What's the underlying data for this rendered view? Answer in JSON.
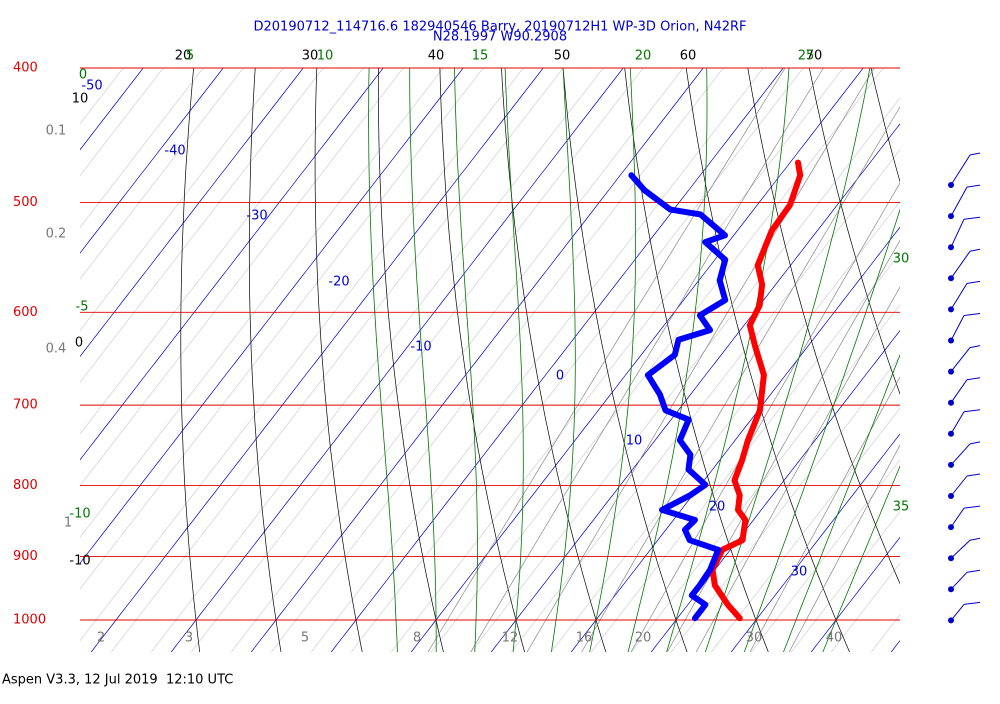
{
  "chart_data": {
    "type": "skewt",
    "title": "D20190712_114716.6 182940546 Barry, 20190712H1 WP-3D Orion, N42RF",
    "subtitle": "N28.1997 W90.2908",
    "footer": "Aspen V3.3, 12 Jul 2019  12:10 UTC",
    "ylim": [
      400,
      1000
    ],
    "yticks": [
      400,
      500,
      600,
      700,
      800,
      900,
      1000
    ],
    "log_scale": true,
    "isotherm_labels": [
      -50,
      -40,
      -30,
      -20,
      -10,
      0,
      10,
      20,
      30
    ],
    "dry_adiabat_labels": [
      20,
      30,
      40,
      50,
      60,
      70
    ],
    "moist_adiabat_top_labels": [
      5,
      10,
      15,
      20,
      25
    ],
    "moist_adiabat_right_labels": [
      30,
      35
    ],
    "moist_adiabat_left_labels": [
      0,
      -5,
      -10
    ],
    "left_black_labels": [
      10,
      0,
      -10
    ],
    "left_gray_labels": [
      0.1,
      0.2,
      0.4,
      1
    ],
    "mixing_ratio_labels": [
      2,
      3,
      5,
      8,
      12,
      16,
      20,
      30,
      40
    ],
    "series": [
      {
        "name": "Temperature",
        "color": "#ff0000",
        "pressure": [
          997,
          975,
          944,
          920,
          890,
          876,
          847,
          833,
          813,
          793,
          767,
          742,
          706,
          666,
          634,
          613,
          593,
          573,
          555,
          524,
          502,
          478,
          468
        ],
        "values": [
          27.8,
          25.0,
          21.5,
          19.7,
          19.0,
          20.6,
          19.0,
          17.1,
          15.9,
          13.8,
          12.8,
          11.6,
          10.2,
          7.3,
          3.3,
          0.7,
          0.0,
          -1.7,
          -4.1,
          -5.7,
          -5.9,
          -7.5,
          -9.0
        ]
      },
      {
        "name": "Dewpoint",
        "color": "#0000ff",
        "pressure": [
          997,
          975,
          960,
          944,
          920,
          890,
          876,
          861,
          847,
          833,
          813,
          799,
          779,
          760,
          742,
          717,
          706,
          688,
          666,
          644,
          628,
          618,
          603,
          588,
          569,
          550,
          534,
          528,
          510,
          506,
          490,
          478
        ],
        "values": [
          22.2,
          22.2,
          19.6,
          19.6,
          19.4,
          18.5,
          14.0,
          12.4,
          12.7,
          7.6,
          9.7,
          10.6,
          7.0,
          5.8,
          3.1,
          2.2,
          -1.6,
          -3.8,
          -7.2,
          -5.8,
          -6.8,
          -3.8,
          -6.5,
          -4.8,
          -7.4,
          -8.7,
          -12.9,
          -11.1,
          -16.2,
          -20.4,
          -25.5,
          -28.6
        ]
      }
    ]
  }
}
